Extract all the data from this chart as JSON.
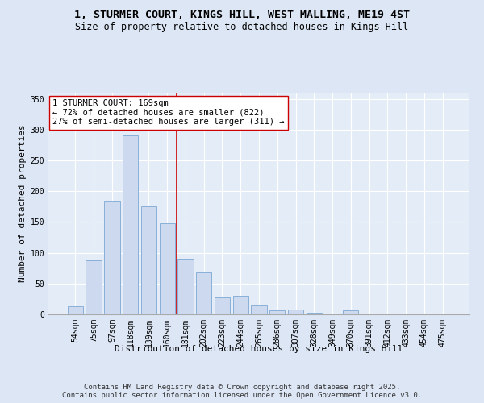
{
  "title_line1": "1, STURMER COURT, KINGS HILL, WEST MALLING, ME19 4ST",
  "title_line2": "Size of property relative to detached houses in Kings Hill",
  "xlabel": "Distribution of detached houses by size in Kings Hill",
  "ylabel": "Number of detached properties",
  "bar_labels": [
    "54sqm",
    "75sqm",
    "97sqm",
    "118sqm",
    "139sqm",
    "160sqm",
    "181sqm",
    "202sqm",
    "223sqm",
    "244sqm",
    "265sqm",
    "286sqm",
    "307sqm",
    "328sqm",
    "349sqm",
    "370sqm",
    "391sqm",
    "412sqm",
    "433sqm",
    "454sqm",
    "475sqm"
  ],
  "bar_values": [
    13,
    88,
    185,
    290,
    175,
    148,
    90,
    68,
    27,
    30,
    14,
    7,
    8,
    3,
    0,
    6,
    0,
    0,
    0,
    0,
    0
  ],
  "bar_color": "#ccd9ee",
  "bar_edgecolor": "#8ab0d8",
  "vline_x": 5.5,
  "vline_color": "#cc0000",
  "annotation_text": "1 STURMER COURT: 169sqm\n← 72% of detached houses are smaller (822)\n27% of semi-detached houses are larger (311) →",
  "annotation_box_facecolor": "#ffffff",
  "annotation_box_edgecolor": "#cc0000",
  "ylim": [
    0,
    360
  ],
  "yticks": [
    0,
    50,
    100,
    150,
    200,
    250,
    300,
    350
  ],
  "bg_color": "#dce6f5",
  "plot_bg_color": "#e4ecf7",
  "footer_text": "Contains HM Land Registry data © Crown copyright and database right 2025.\nContains public sector information licensed under the Open Government Licence v3.0.",
  "title_fontsize": 9.5,
  "subtitle_fontsize": 8.5,
  "xlabel_fontsize": 8,
  "ylabel_fontsize": 8,
  "tick_fontsize": 7,
  "annotation_fontsize": 7.5,
  "footer_fontsize": 6.5
}
